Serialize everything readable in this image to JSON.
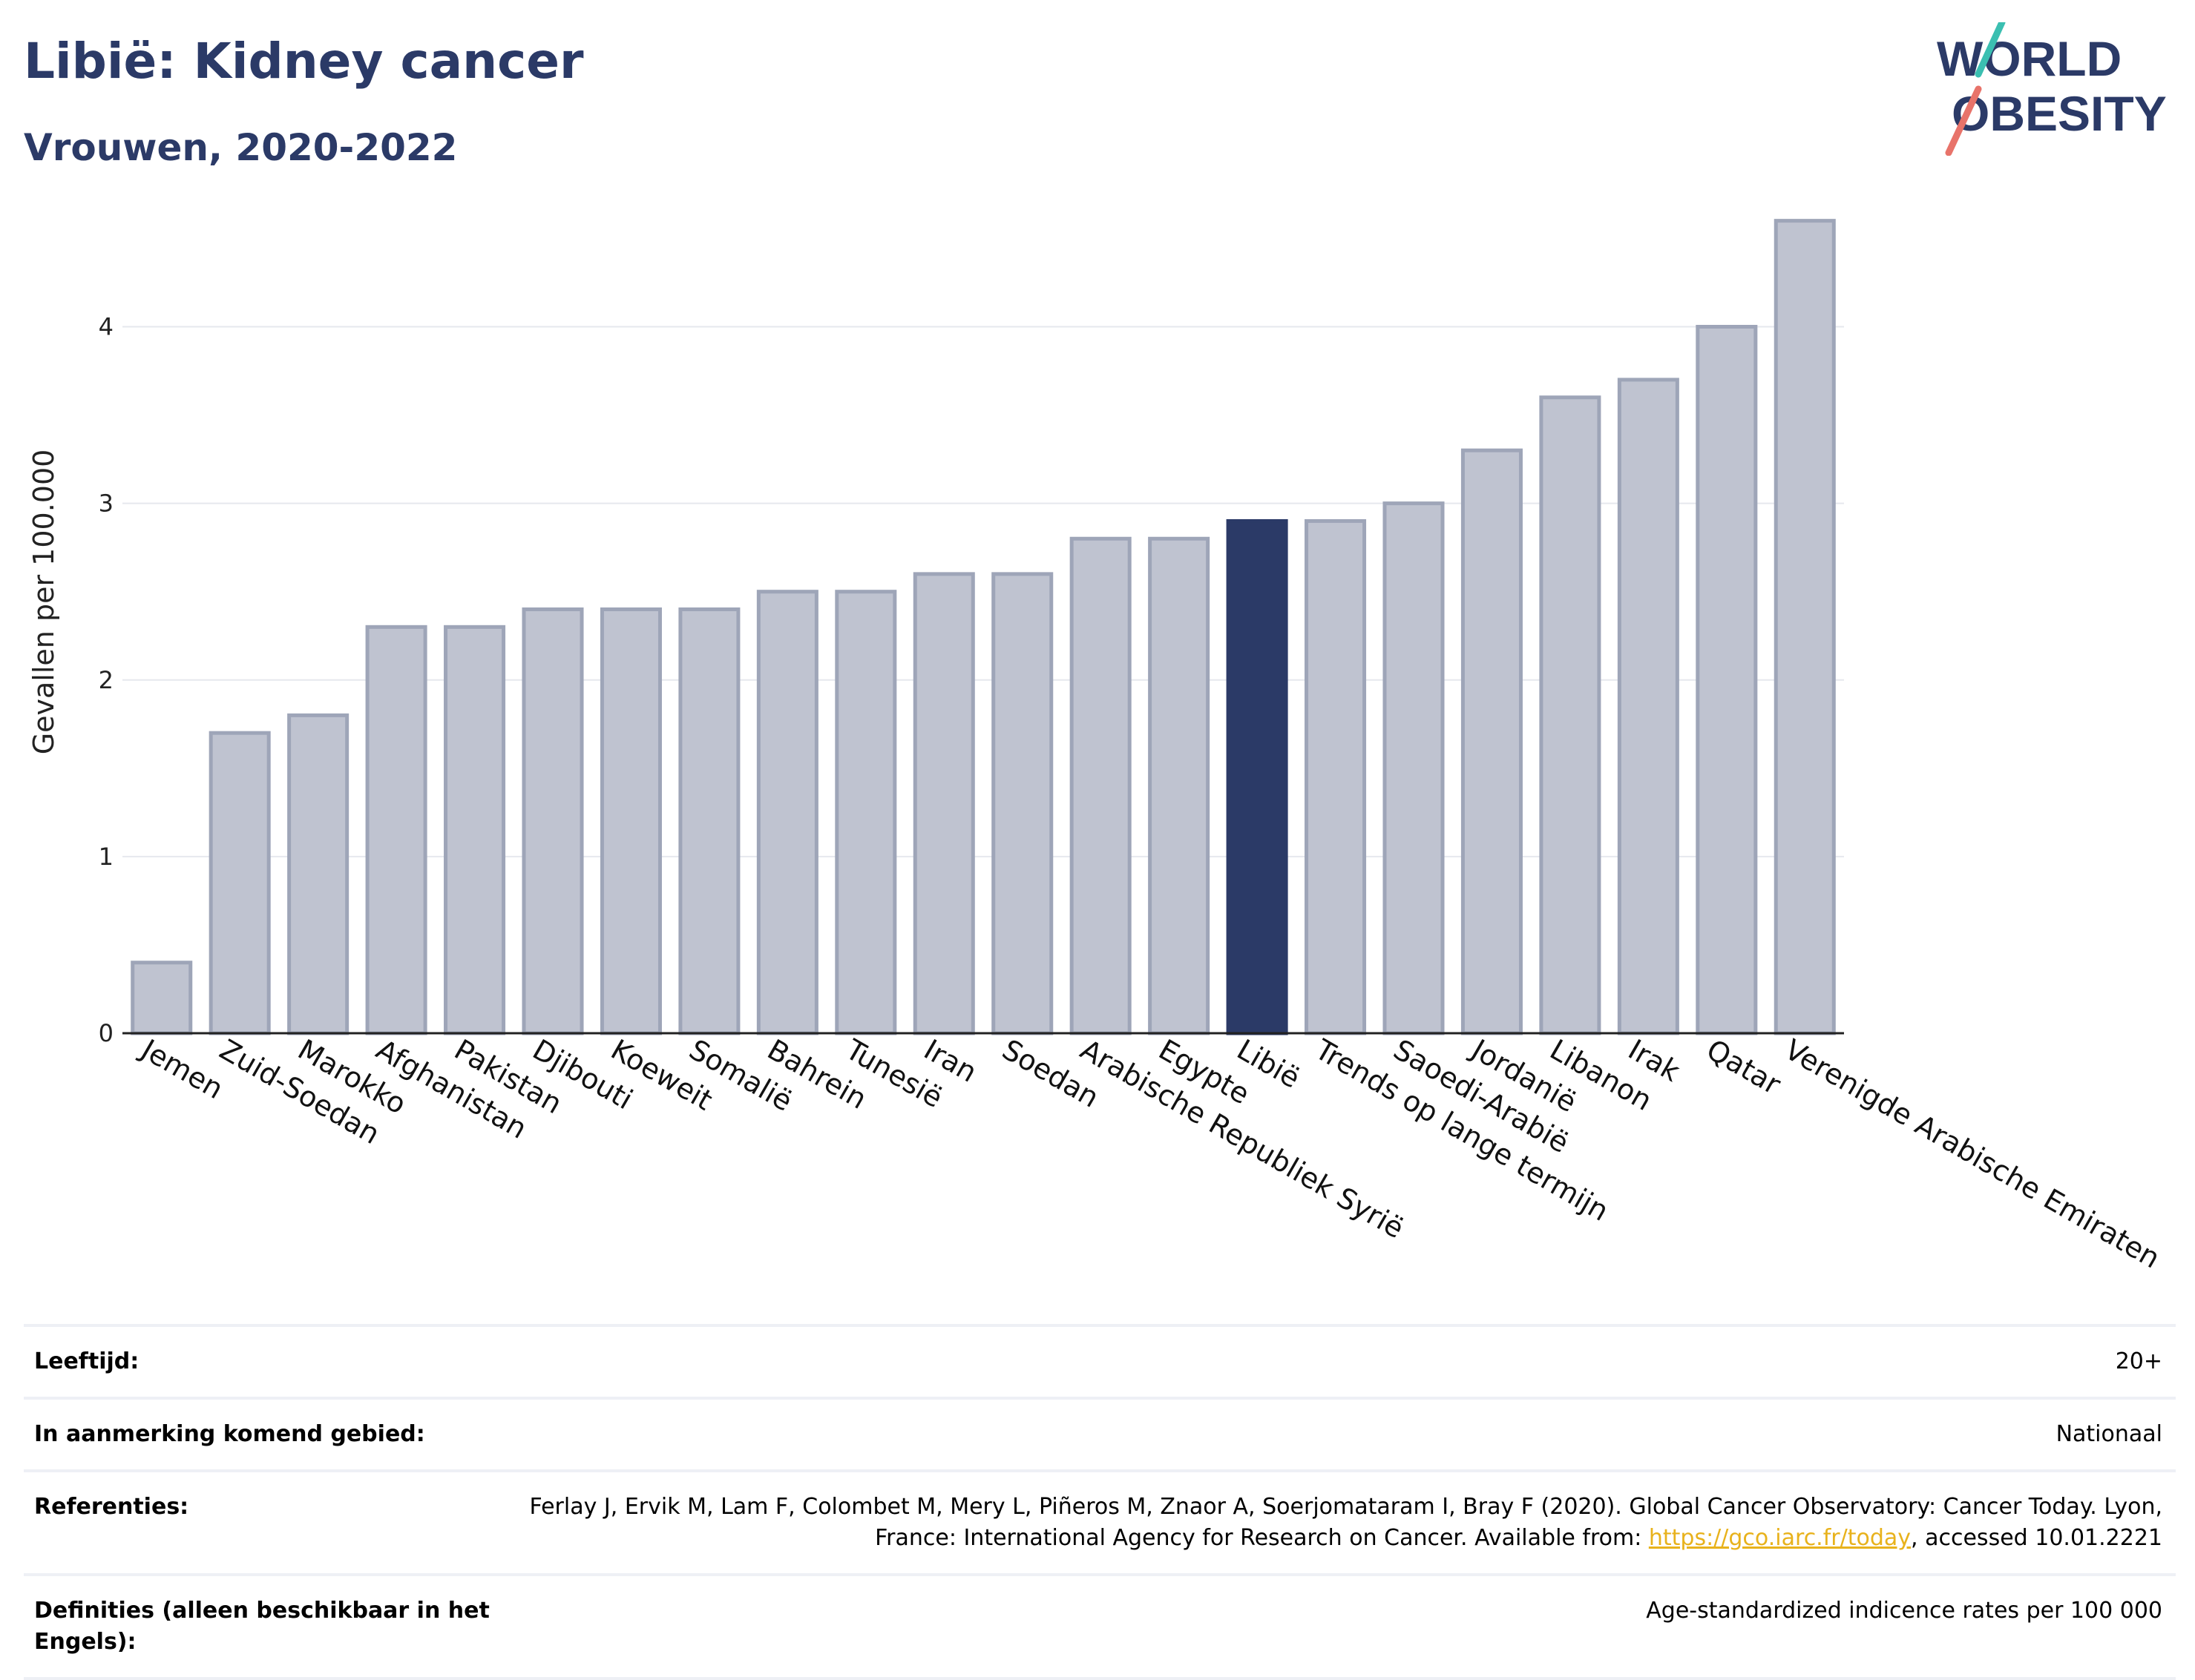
{
  "header": {
    "title": "Libië: Kidney cancer",
    "subtitle": "Vrouwen, 2020-2022"
  },
  "logo": {
    "line1": "WORLD",
    "line2": "OBESITY",
    "accent_teal": "#3bbfb1",
    "accent_coral": "#e8736a",
    "text_color": "#2b3a67"
  },
  "colors": {
    "bar": "#bfc3d0",
    "bar_border": "#9ea5b8",
    "highlight": "#2b3a67",
    "grid": "#e6e8ee",
    "axis": "#222222"
  },
  "chart_data": {
    "type": "bar",
    "title": "Libië: Kidney cancer",
    "subtitle": "Vrouwen, 2020-2022",
    "xlabel": "",
    "ylabel": "Gevallen per 100.000",
    "ylim": [
      0,
      4.8
    ],
    "yticks": [
      0,
      1,
      2,
      3,
      4
    ],
    "grid": true,
    "highlight": "Libië",
    "categories": [
      "Jemen",
      "Zuid-Soedan",
      "Marokko",
      "Afghanistan",
      "Pakistan",
      "Djibouti",
      "Koeweit",
      "Somalië",
      "Bahrein",
      "Tunesië",
      "Iran",
      "Soedan",
      "Arabische Republiek Syrië",
      "Egypte",
      "Libië",
      "Trends op lange termijn",
      "Saoedi-Arabië",
      "Jordanië",
      "Libanon",
      "Irak",
      "Qatar",
      "Verenigde Arabische Emiraten"
    ],
    "values": [
      0.4,
      1.7,
      1.8,
      2.3,
      2.3,
      2.4,
      2.4,
      2.4,
      2.5,
      2.5,
      2.6,
      2.6,
      2.8,
      2.8,
      2.9,
      2.9,
      3.0,
      3.3,
      3.6,
      3.7,
      4.0,
      4.6
    ]
  },
  "info": {
    "rows": [
      {
        "label": "Leeftijd:",
        "value": "20+"
      },
      {
        "label": "In aanmerking komend gebied:",
        "value": "Nationaal"
      },
      {
        "label": "Referenties:",
        "value_before": "Ferlay J, Ervik M, Lam F, Colombet M, Mery L, Piñeros M, Znaor A, Soerjomataram I, Bray F (2020). Global Cancer Observatory: Cancer Today. Lyon, France: International Agency for Research on Cancer. Available from: ",
        "link": "https://gco.iarc.fr/today",
        "value_after": ", accessed 10.01.2221"
      },
      {
        "label": "Definities (alleen beschikbaar in het Engels):",
        "value": "Age-standardized indicence rates per 100 000"
      }
    ]
  }
}
